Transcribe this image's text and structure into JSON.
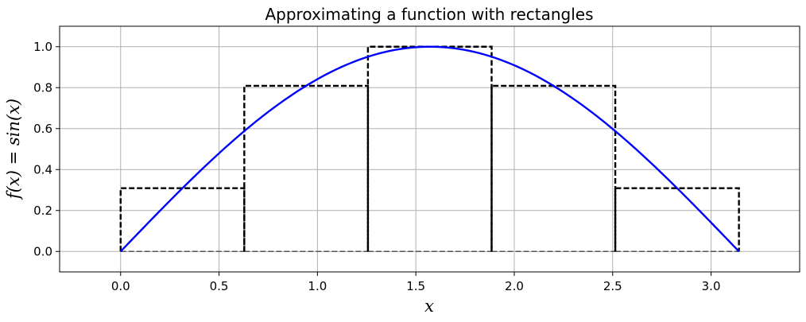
{
  "chart_data": {
    "type": "line",
    "title": "Approximating a function with rectangles",
    "xlabel": "x",
    "ylabel": "f(x) = sin(x)",
    "xlim": [
      -0.31,
      3.45
    ],
    "ylim": [
      -0.1,
      1.1
    ],
    "xticks": [
      0.0,
      0.5,
      1.0,
      1.5,
      2.0,
      2.5,
      3.0
    ],
    "xtick_labels": [
      "0.0",
      "0.5",
      "1.0",
      "1.5",
      "2.0",
      "2.5",
      "3.0"
    ],
    "yticks": [
      0.0,
      0.2,
      0.4,
      0.6,
      0.8,
      1.0
    ],
    "ytick_labels": [
      "0.0",
      "0.2",
      "0.4",
      "0.6",
      "0.8",
      "1.0"
    ],
    "grid": true,
    "series": [
      {
        "function": "sin(x)",
        "x_range": [
          0,
          3.1416
        ],
        "color": "#0000ff",
        "style": "solid"
      }
    ],
    "rectangles": [
      {
        "x0": 0.0,
        "x1": 0.6283,
        "height": 0.309
      },
      {
        "x0": 0.6283,
        "x1": 1.2566,
        "height": 0.809
      },
      {
        "x0": 1.2566,
        "x1": 1.885,
        "height": 1.0
      },
      {
        "x0": 1.885,
        "x1": 2.5133,
        "height": 0.809
      },
      {
        "x0": 2.5133,
        "x1": 3.1416,
        "height": 0.309
      }
    ],
    "rectangle_color": "#000000",
    "rectangle_style": "dashed"
  }
}
